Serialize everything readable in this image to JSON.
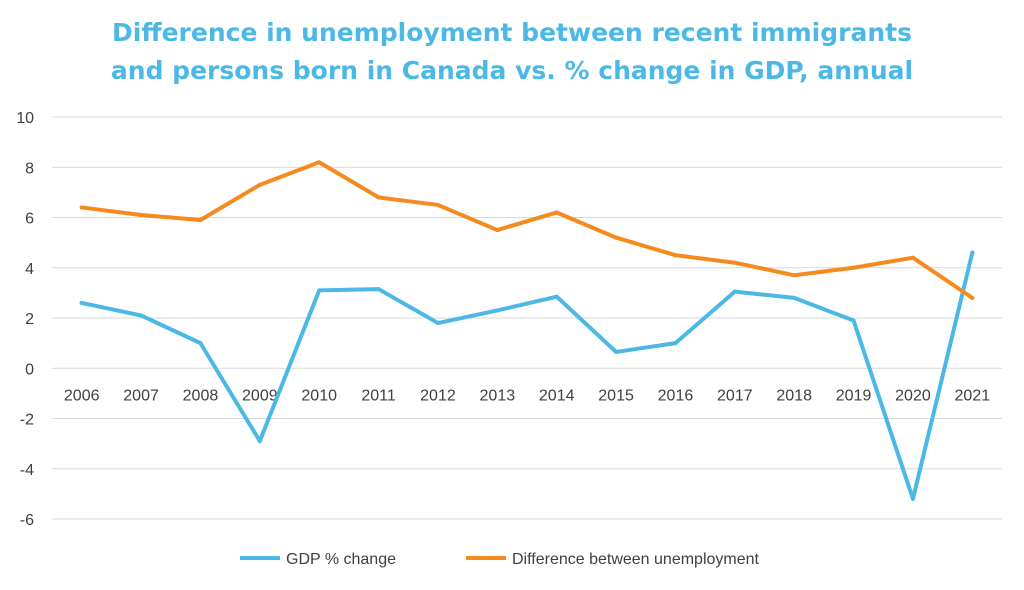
{
  "title_line1": "Difference in unemployment between recent immigrants",
  "title_line2": "and persons born in Canada vs. % change in GDP, annual",
  "chart_data": {
    "type": "line",
    "title": "Difference in unemployment between recent immigrants and persons born in Canada vs. % change in GDP, annual",
    "xlabel": "",
    "ylabel": "",
    "categories": [
      "2006",
      "2007",
      "2008",
      "2009",
      "2010",
      "2011",
      "2012",
      "2013",
      "2014",
      "2015",
      "2016",
      "2017",
      "2018",
      "2019",
      "2020",
      "2021"
    ],
    "ylim": [
      -6,
      10
    ],
    "yticks": [
      10,
      8,
      6,
      4,
      2,
      0,
      -2,
      -4,
      -6
    ],
    "grid": true,
    "legend": "bottom",
    "series": [
      {
        "name": "GDP % change",
        "color": "#4cb8e6",
        "values": [
          2.6,
          2.1,
          1.0,
          -2.9,
          3.1,
          3.15,
          1.8,
          2.3,
          2.85,
          0.65,
          1.0,
          3.05,
          2.8,
          1.9,
          -5.2,
          4.6
        ]
      },
      {
        "name": "Difference between unemployment",
        "color": "#f58b1f",
        "values": [
          6.4,
          6.1,
          5.9,
          7.3,
          8.2,
          6.8,
          6.5,
          5.5,
          6.2,
          5.2,
          4.5,
          4.2,
          3.7,
          4.0,
          4.4,
          2.8
        ]
      }
    ]
  }
}
